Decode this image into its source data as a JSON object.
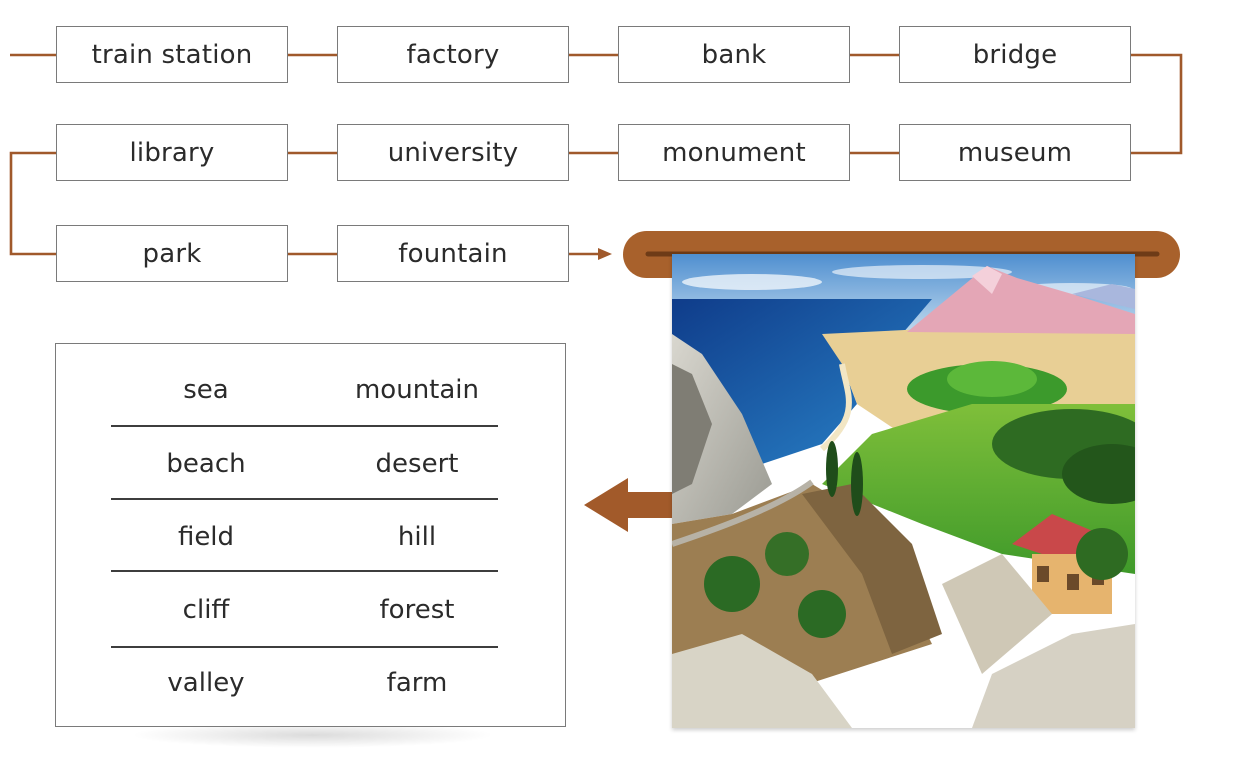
{
  "flow": {
    "row1": [
      "train station",
      "factory",
      "bank",
      "bridge"
    ],
    "row2": [
      "library",
      "university",
      "monument",
      "museum"
    ],
    "row3": [
      "park",
      "fountain"
    ]
  },
  "vocabulary": [
    [
      "sea",
      "mountain"
    ],
    [
      "beach",
      "desert"
    ],
    [
      "field",
      "hill"
    ],
    [
      "cliff",
      "forest"
    ],
    [
      "valley",
      "farm"
    ]
  ],
  "colors": {
    "connector": "#a0592b",
    "scroll_rod": "#a8612c",
    "scroll_rod_dark": "#6e3b17",
    "border": "#7a7a7a"
  },
  "picture": {
    "icon": "landscape-illustration"
  }
}
